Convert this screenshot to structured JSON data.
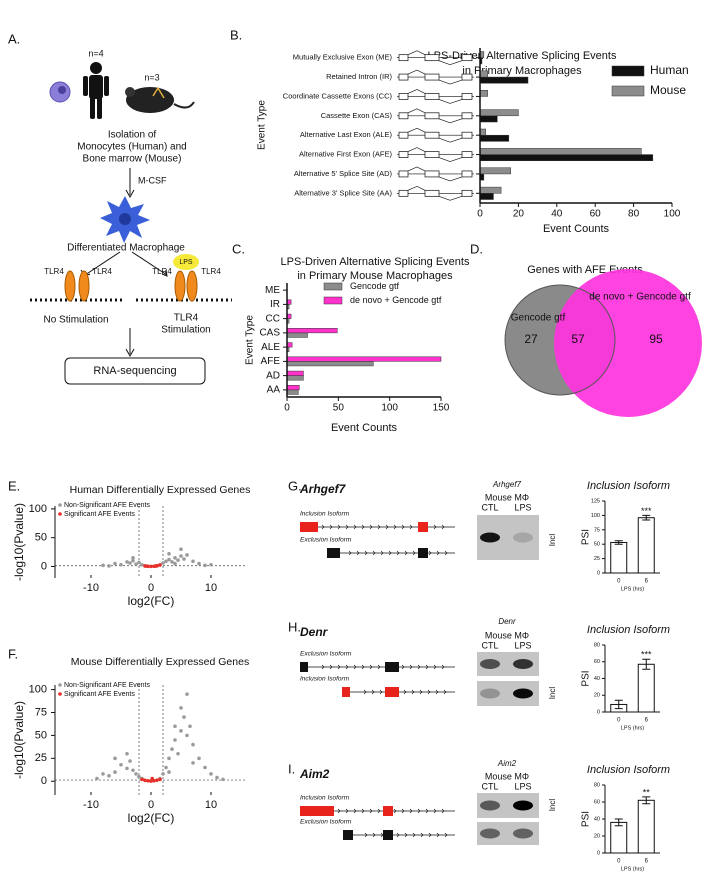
{
  "panel_labels": [
    "A.",
    "B.",
    "C.",
    "D.",
    "E.",
    "F.",
    "G.",
    "H.",
    "I."
  ],
  "schematic": {
    "human_n": "n=4",
    "mouse_n": "n=3",
    "isolation": [
      "Isolation of",
      "Monocytes (Human) and",
      "Bone marrow (Mouse)"
    ],
    "mcsf": "M-CSF",
    "macrophage": "Differentiated Macrophage",
    "lps": "LPS",
    "receptor_labels": [
      "TLR4",
      "TLR4",
      "TLR4",
      "TLR4"
    ],
    "no_stimulation": "No Stimulation",
    "stimulation": [
      "TLR4",
      "Stimulation"
    ],
    "rnaseq": "RNA-sequencing"
  },
  "chart_data": [
    {
      "type": "bar",
      "orientation": "horizontal",
      "title": [
        "LPS-Driven Alternative Splicing Events",
        "in Primary Macrophages"
      ],
      "categories": [
        "Mutually Exclusive Exon (ME)",
        "Retained Intron (IR)",
        "Coordinate Cassette Exons (CC)",
        "Cassette Exon (CAS)",
        "Alternative Last Exon (ALE)",
        "Alternative First Exon (AFE)",
        "Alternative 5' Splice Site (AD)",
        "Alternative 3' Splice Site (AA)"
      ],
      "series": [
        {
          "name": "Human",
          "color": "#111111",
          "values": [
            1,
            25,
            0,
            9,
            15,
            90,
            2,
            7
          ]
        },
        {
          "name": "Mouse",
          "color": "#8c8c8c",
          "values": [
            2,
            4,
            4,
            20,
            3,
            84,
            16,
            11
          ]
        }
      ],
      "xlim": [
        0,
        100
      ],
      "xticks": [
        0,
        20,
        40,
        60,
        80,
        100
      ],
      "xlabel": "Event Counts",
      "ylabel": "Event Type"
    },
    {
      "type": "bar",
      "orientation": "horizontal",
      "title": [
        "LPS-Driven Alternative Splicing Events",
        "in Primary Mouse Macrophages"
      ],
      "categories": [
        "ME",
        "IR",
        "CC",
        "CAS",
        "ALE",
        "AFE",
        "AD",
        "AA"
      ],
      "series": [
        {
          "name": "Gencode gtf",
          "color": "#8c8c8c",
          "values": [
            0,
            2,
            2,
            20,
            2,
            84,
            16,
            11
          ]
        },
        {
          "name": "de novo + Gencode gtf",
          "color": "#ff33cc",
          "values": [
            0,
            4,
            4,
            49,
            5,
            150,
            16,
            12
          ]
        }
      ],
      "xlim": [
        0,
        150
      ],
      "xticks": [
        0,
        50,
        100,
        150
      ],
      "xlabel": "Event Counts",
      "ylabel": "Event Type"
    },
    {
      "type": "venn",
      "title": "Genes with AFE Events",
      "sets": [
        {
          "name": "Gencode gtf",
          "color": "#8a8a8a"
        },
        {
          "name": "de novo + Gencode gtf",
          "color": "#ff33dd"
        }
      ],
      "values": [
        27,
        57,
        95
      ]
    },
    {
      "type": "scatter",
      "title": "Human Differentially Expressed Genes",
      "series": [
        {
          "name": "Non-Significant AFE Events",
          "color": "#9a9a9a",
          "x": [
            -8,
            -6,
            -5,
            -4,
            -3.5,
            -3,
            -2.5,
            -2,
            -1.5,
            -1,
            1,
            1.5,
            2,
            2.5,
            3,
            3.5,
            4,
            4.5,
            5,
            5.5,
            6,
            7,
            8,
            10,
            5,
            -3,
            3,
            9,
            -7,
            4
          ],
          "values": [
            2,
            5,
            3,
            8,
            6,
            10,
            4,
            7,
            3,
            1,
            1,
            3,
            6,
            9,
            12,
            8,
            15,
            11,
            18,
            13,
            20,
            9,
            5,
            3,
            30,
            15,
            22,
            2,
            1,
            5
          ]
        },
        {
          "name": "Significant AFE Events",
          "color": "#e8302a",
          "x": [
            -1,
            -0.5,
            0,
            0.5,
            1,
            1.5,
            0.8,
            -0.7
          ],
          "values": [
            1,
            0.4,
            0.1,
            0.3,
            1.5,
            2.5,
            0.8,
            0.6
          ]
        }
      ],
      "thresholds": {
        "x": [
          -2,
          2
        ],
        "y": 1.3
      },
      "xlim": [
        -16,
        16
      ],
      "xticks": [
        -10,
        0,
        10
      ],
      "ylim": [
        -20,
        105
      ],
      "yticks": [
        0,
        50,
        100
      ],
      "xlabel": "log2(FC)",
      "ylabel": "-log10(Pvalue)"
    },
    {
      "type": "scatter",
      "title": "Mouse Differentially Expressed Genes",
      "series": [
        {
          "name": "Non-Significant AFE Events",
          "color": "#9a9a9a",
          "x": [
            -9,
            -7,
            -6,
            -5,
            -4,
            -3.5,
            -3,
            -2.5,
            -2,
            -1.5,
            1.5,
            2,
            2.5,
            3,
            3.5,
            4,
            4.5,
            5,
            5.5,
            6,
            6.5,
            7,
            8,
            9,
            10,
            11,
            5,
            4,
            6,
            3,
            -4,
            -6,
            -8,
            12,
            7
          ],
          "values": [
            3,
            6,
            10,
            18,
            14,
            22,
            12,
            8,
            5,
            3,
            3,
            8,
            15,
            25,
            35,
            45,
            30,
            55,
            70,
            95,
            60,
            40,
            25,
            15,
            8,
            4,
            80,
            60,
            50,
            10,
            30,
            25,
            8,
            2,
            20
          ]
        },
        {
          "name": "Significant AFE Events",
          "color": "#e8302a",
          "x": [
            -1,
            -0.5,
            0,
            0.5,
            1,
            1.5,
            -1.5,
            0.2
          ],
          "values": [
            1,
            0.5,
            0.2,
            0.5,
            1.2,
            2,
            2,
            3
          ]
        }
      ],
      "thresholds": {
        "x": [
          -2,
          2
        ],
        "y": 1.3
      },
      "xlim": [
        -16,
        16
      ],
      "xticks": [
        -10,
        0,
        10
      ],
      "ylim": [
        -15,
        105
      ],
      "yticks": [
        0,
        25,
        50,
        75,
        100
      ],
      "xlabel": "log2(FC)",
      "ylabel": "-log10(Pvalue)"
    },
    {
      "type": "bar",
      "title": "Inclusion Isoform",
      "categories": [
        "0",
        "6"
      ],
      "values": [
        53,
        96
      ],
      "errors": [
        3,
        4
      ],
      "significance": "***",
      "color": "#ffffff",
      "ylim": [
        0,
        125
      ],
      "yticks": [
        0,
        25,
        50,
        75,
        100,
        125
      ],
      "xlabel": "LPS (hrs)",
      "ylabel": "PSI"
    },
    {
      "type": "bar",
      "title": "Inclusion Isoform",
      "categories": [
        "0",
        "6"
      ],
      "values": [
        9,
        57
      ],
      "errors": [
        5,
        6
      ],
      "significance": "***",
      "color": "#ffffff",
      "ylim": [
        0,
        80
      ],
      "yticks": [
        0,
        20,
        40,
        60,
        80
      ],
      "xlabel": "LPS (hrs)",
      "ylabel": "PSI"
    },
    {
      "type": "bar",
      "title": "Inclusion Isoform",
      "categories": [
        "0",
        "6"
      ],
      "values": [
        36,
        62
      ],
      "errors": [
        4,
        4
      ],
      "significance": "**",
      "color": "#ffffff",
      "ylim": [
        0,
        80
      ],
      "yticks": [
        0,
        20,
        40,
        60,
        80
      ],
      "xlabel": "LPS (hrs)",
      "ylabel": "PSI"
    }
  ],
  "gene_panels": [
    {
      "gene": "Arhgef7",
      "isoforms": [
        "Inclusion Isoform",
        "Exclusion Isoform"
      ],
      "gel": {
        "gene": "Arhgef7",
        "source": "Mouse MΦ",
        "lanes": [
          "CTL",
          "LPS"
        ],
        "band_label": "Incl"
      }
    },
    {
      "gene": "Denr",
      "isoforms": [
        "Exclusion Isoform",
        "Inclusion Isoform"
      ],
      "gel": {
        "gene": "Denr",
        "source": "Mouse MΦ",
        "lanes": [
          "CTL",
          "LPS"
        ],
        "band_label": "Incl"
      }
    },
    {
      "gene": "Aim2",
      "isoforms": [
        "Inclusion Isoform",
        "Exclusion Isoform"
      ],
      "gel": {
        "gene": "Aim2",
        "source": "Mouse MΦ",
        "lanes": [
          "CTL",
          "LPS"
        ],
        "band_label": "Incl"
      }
    }
  ]
}
